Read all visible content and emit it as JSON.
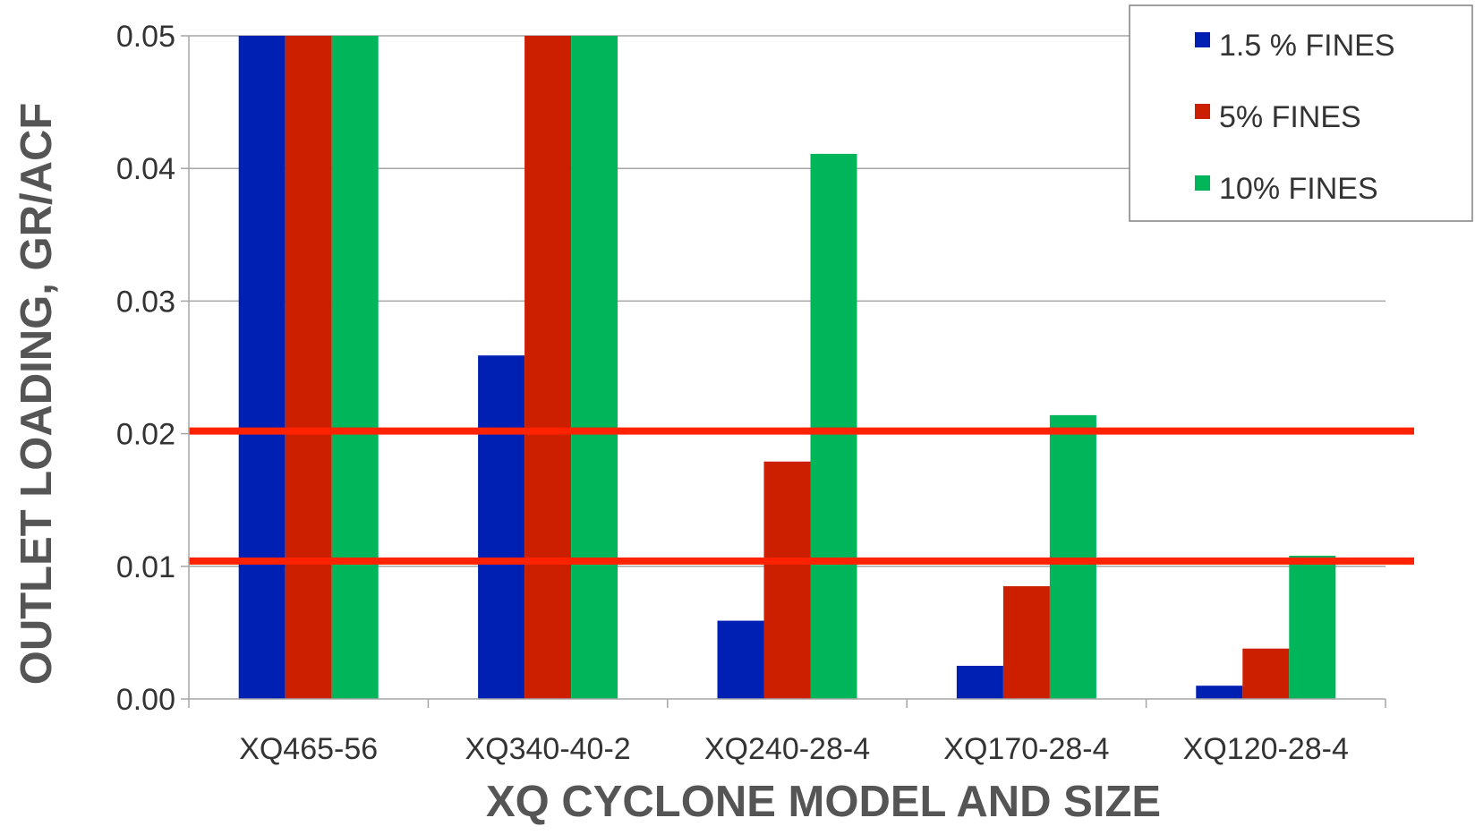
{
  "chart_data": {
    "type": "bar",
    "title": "",
    "xlabel": "XQ CYCLONE MODEL AND SIZE",
    "ylabel": "OUTLET LOADING, GR/ACF",
    "categories": [
      "XQ465-56",
      "XQ340-40-2",
      "XQ240-28-4",
      "XQ170-28-4",
      "XQ120-28-4"
    ],
    "ylim": [
      0,
      0.05
    ],
    "yticks": [
      "0.00",
      "0.01",
      "0.02",
      "0.03",
      "0.04",
      "0.05"
    ],
    "grid": true,
    "legend_position": "top-right",
    "series": [
      {
        "name": "1.5 % FINES",
        "color": "#0020B4",
        "values": [
          0.05,
          0.0259,
          0.0059,
          0.0025,
          0.001
        ]
      },
      {
        "name": "5% FINES",
        "color": "#CC1F00",
        "values": [
          0.05,
          0.05,
          0.0179,
          0.0085,
          0.0038
        ]
      },
      {
        "name": "10% FINES",
        "color": "#00B55A",
        "values": [
          0.05,
          0.05,
          0.0411,
          0.0214,
          0.0108
        ]
      }
    ],
    "reference_lines": [
      {
        "value": 0.0202,
        "color": "#FF2200"
      },
      {
        "value": 0.0104,
        "color": "#FF2200"
      }
    ]
  }
}
